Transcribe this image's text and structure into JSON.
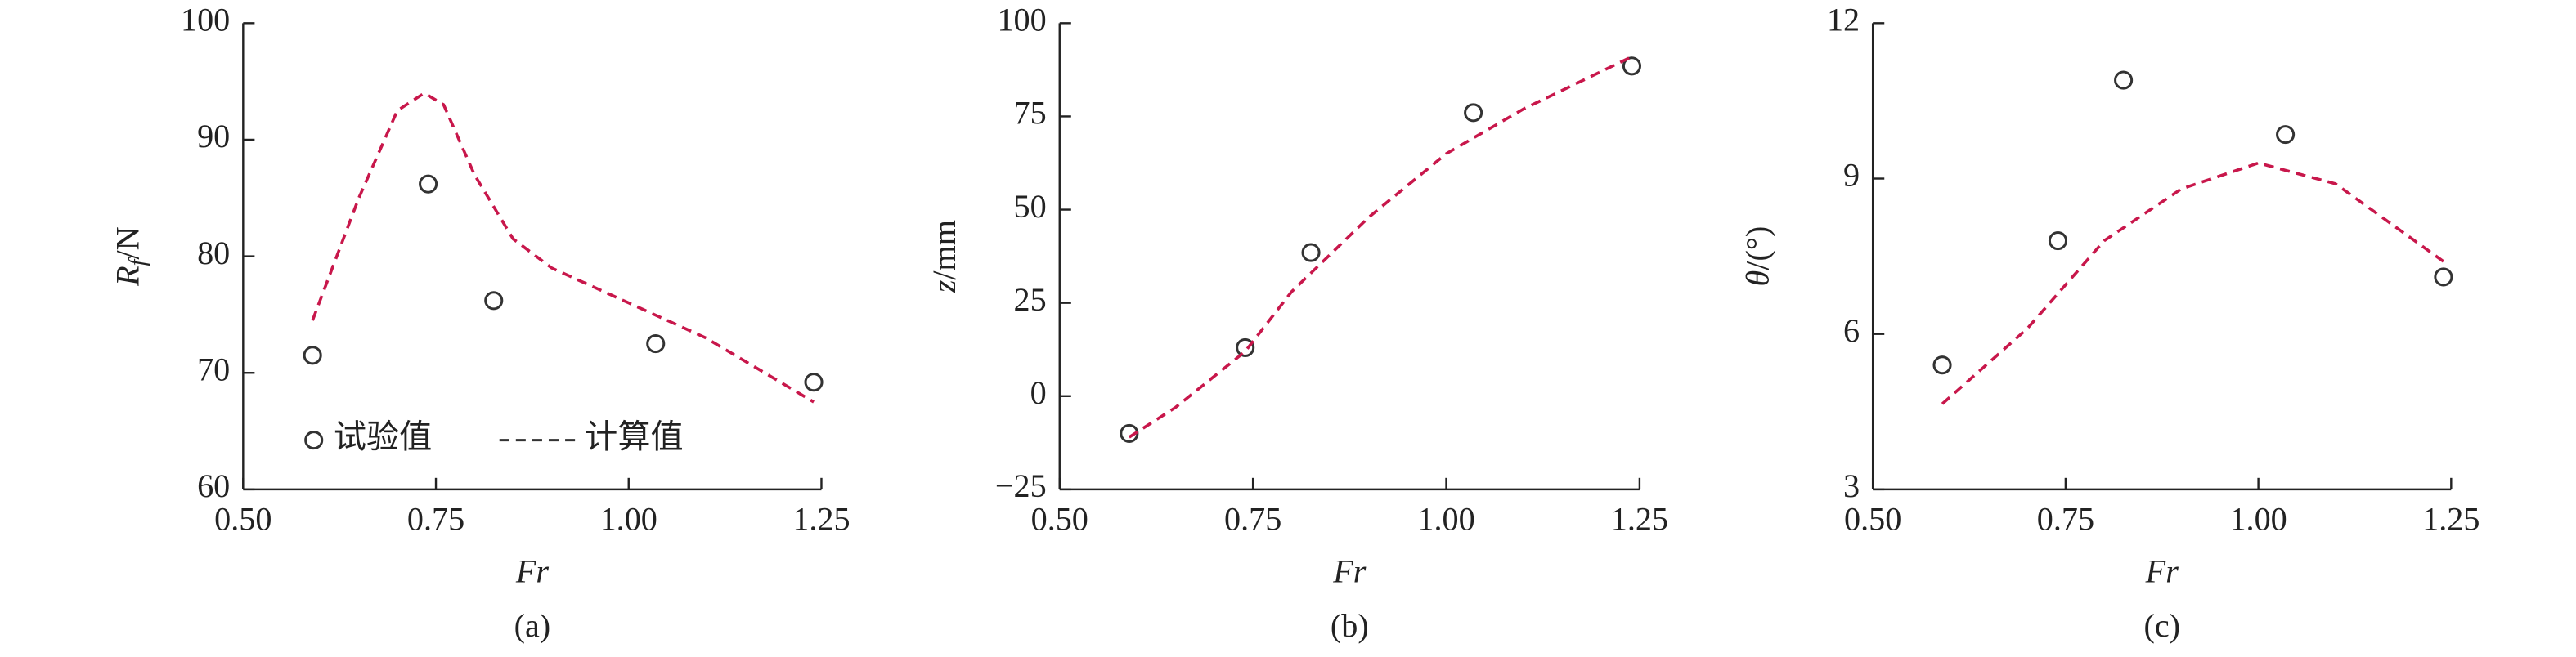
{
  "chart_data": [
    {
      "type": "scatter",
      "caption": "(a)",
      "xlabel": "Fr",
      "ylabel": {
        "var": "R",
        "sub": "f",
        "unit": "/N"
      },
      "xlim": [
        0.5,
        1.25
      ],
      "xticks": [
        {
          "value": 0.5,
          "label": "0.50"
        },
        {
          "value": 0.75,
          "label": "0.75"
        },
        {
          "value": 1.0,
          "label": "1.00"
        },
        {
          "value": 1.25,
          "label": "1.25"
        }
      ],
      "ylim": [
        60,
        100
      ],
      "yticks": [
        60,
        70,
        80,
        90,
        100
      ],
      "legend": "lower left",
      "series": [
        {
          "name": "试验值",
          "kind": "scatter",
          "color": "#333333",
          "x": [
            0.59,
            0.74,
            0.825,
            1.035,
            1.24
          ],
          "values": [
            71.5,
            86.2,
            76.2,
            72.5,
            69.2
          ]
        },
        {
          "name": "计算值",
          "kind": "line",
          "color": "#c8174b",
          "x": [
            0.59,
            0.65,
            0.7,
            0.735,
            0.76,
            0.8,
            0.85,
            0.9,
            1.0,
            1.1,
            1.24
          ],
          "values": [
            74.5,
            85,
            92.5,
            94,
            93,
            87,
            81.5,
            79,
            76,
            73,
            67.5
          ]
        }
      ]
    },
    {
      "type": "scatter",
      "caption": "(b)",
      "xlabel": "Fr",
      "ylabel": {
        "var": "z",
        "unit": "/mm"
      },
      "xlim": [
        0.5,
        1.25
      ],
      "xticks": [
        {
          "value": 0.5,
          "label": "0.50"
        },
        {
          "value": 0.75,
          "label": "0.75"
        },
        {
          "value": 1.0,
          "label": "1.00"
        },
        {
          "value": 1.25,
          "label": "1.25"
        }
      ],
      "ylim": [
        -25,
        100
      ],
      "yticks": [
        {
          "value": -25,
          "label": "−25"
        },
        0,
        25,
        50,
        75,
        100
      ],
      "series": [
        {
          "kind": "scatter",
          "color": "#333333",
          "x": [
            0.59,
            0.74,
            0.825,
            1.035,
            1.24
          ],
          "values": [
            -10,
            13,
            38.5,
            76,
            88.5
          ]
        },
        {
          "kind": "line",
          "color": "#c8174b",
          "x": [
            0.59,
            0.65,
            0.74,
            0.8,
            0.9,
            1.0,
            1.1,
            1.24
          ],
          "values": [
            -11,
            -3,
            12,
            28,
            48,
            65,
            77,
            91
          ]
        }
      ]
    },
    {
      "type": "scatter",
      "caption": "(c)",
      "xlabel": "Fr",
      "ylabel": {
        "var": "θ",
        "unit": "/(°)"
      },
      "xlim": [
        0.5,
        1.25
      ],
      "xticks": [
        {
          "value": 0.5,
          "label": "0.50"
        },
        {
          "value": 0.75,
          "label": "0.75"
        },
        {
          "value": 1.0,
          "label": "1.00"
        },
        {
          "value": 1.25,
          "label": "1.25"
        }
      ],
      "ylim": [
        3,
        12
      ],
      "yticks": [
        3,
        6,
        9,
        12
      ],
      "series": [
        {
          "kind": "scatter",
          "color": "#333333",
          "x": [
            0.59,
            0.74,
            0.825,
            1.035,
            1.24
          ],
          "values": [
            5.4,
            7.8,
            10.9,
            9.85,
            7.1
          ]
        },
        {
          "kind": "line",
          "color": "#c8174b",
          "x": [
            0.59,
            0.7,
            0.8,
            0.9,
            1.0,
            1.1,
            1.24
          ],
          "values": [
            4.65,
            6.1,
            7.8,
            8.8,
            9.3,
            8.9,
            7.4
          ]
        }
      ]
    }
  ]
}
